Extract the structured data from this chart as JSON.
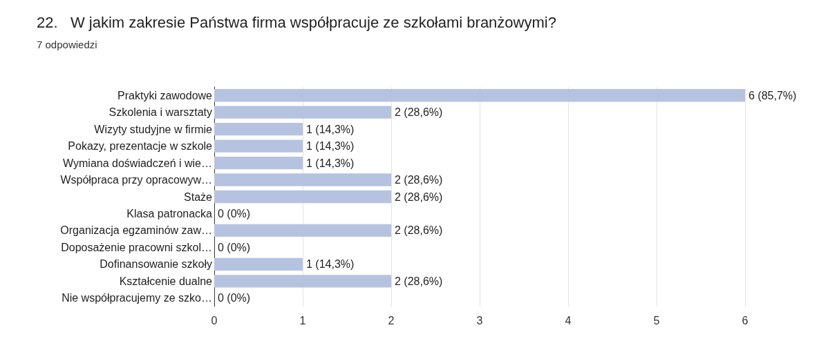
{
  "chart_data": {
    "type": "bar",
    "orientation": "horizontal",
    "title": "22.   W jakim zakresie Państwa firma współpracuje ze szkołami branżowymi?",
    "subtitle": "7 odpowiedzi",
    "categories": [
      "Praktyki zawodowe",
      "Szkolenia i warsztaty",
      "Wizyty studyjne w firmie",
      "Pokazy, prezentacje w szkole",
      "Wymiana doświadczeń i wie…",
      "Współpraca przy opracowyw…",
      "Staże",
      "Klasa patronacka",
      "Organizacja egzaminów zaw…",
      "Doposażenie pracowni szkol…",
      "Dofinansowanie szkoły",
      "Kształcenie dualne",
      "Nie współpracujemy ze szko…"
    ],
    "values": [
      6,
      2,
      1,
      1,
      1,
      2,
      2,
      0,
      2,
      0,
      1,
      2,
      0
    ],
    "value_labels": [
      "6 (85,7%)",
      "2 (28,6%)",
      "1 (14,3%)",
      "1 (14,3%)",
      "1 (14,3%)",
      "2 (28,6%)",
      "2 (28,6%)",
      "0 (0%)",
      "2 (28,6%)",
      "0 (0%)",
      "1 (14,3%)",
      "2 (28,6%)",
      "0 (0%)"
    ],
    "color": "#b6c3e0",
    "xlim": [
      0,
      6
    ],
    "xticks": [
      0,
      1,
      2,
      3,
      4,
      5,
      6
    ],
    "grid": "x"
  }
}
